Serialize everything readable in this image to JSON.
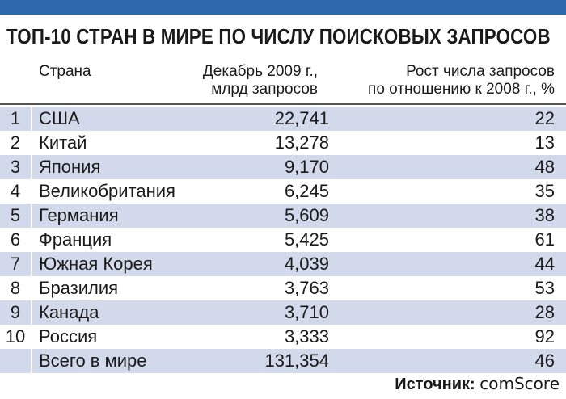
{
  "title": "ТОП-10 СТРАН В МИРЕ ПО ЧИСЛУ ПОИСКОВЫХ ЗАПРОСОВ",
  "headers": {
    "country": "Страна",
    "december_line1": "Декабрь 2009 г.,",
    "december_line2": "млрд запросов",
    "growth_line1": "Рост числа запросов",
    "growth_line2": "по отношению к 2008 г., %"
  },
  "rows": [
    {
      "rank": "1",
      "country": "США",
      "queries": "22,741",
      "growth": "22"
    },
    {
      "rank": "2",
      "country": "Китай",
      "queries": "13,278",
      "growth": "13"
    },
    {
      "rank": "3",
      "country": "Япония",
      "queries": "9,170",
      "growth": "48"
    },
    {
      "rank": "4",
      "country": "Великобритания",
      "queries": "6,245",
      "growth": "35"
    },
    {
      "rank": "5",
      "country": "Германия",
      "queries": "5,609",
      "growth": "38"
    },
    {
      "rank": "6",
      "country": "Франция",
      "queries": "5,425",
      "growth": "61"
    },
    {
      "rank": "7",
      "country": "Южная Корея",
      "queries": "4,039",
      "growth": "44"
    },
    {
      "rank": "8",
      "country": "Бразилия",
      "queries": "3,763",
      "growth": "53"
    },
    {
      "rank": "9",
      "country": "Канада",
      "queries": "3,710",
      "growth": "28"
    },
    {
      "rank": "10",
      "country": "Россия",
      "queries": "3,333",
      "growth": "92"
    },
    {
      "rank": "",
      "country": "Всего в мире",
      "queries": "131,354",
      "growth": "46"
    }
  ],
  "source": {
    "label": "Источник:",
    "name": "comScore"
  },
  "colors": {
    "topbar": "#2f68ad",
    "row_shade": "#d2d9ea"
  }
}
